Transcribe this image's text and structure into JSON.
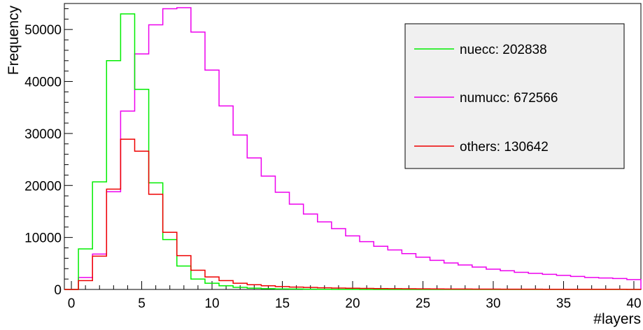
{
  "chart_data": {
    "type": "histogram",
    "xlabel": "#layers",
    "ylabel": "Frequency",
    "xlim": [
      -0.5,
      40.5
    ],
    "ylim": [
      0,
      55000
    ],
    "grid": false,
    "legend_position": "top-right",
    "x_ticks": [
      0,
      5,
      10,
      15,
      20,
      25,
      30,
      35,
      40
    ],
    "y_ticks": [
      0,
      10000,
      20000,
      30000,
      40000,
      50000
    ],
    "bin_edges": [
      -0.5,
      0.5,
      1.5,
      2.5,
      3.5,
      4.5,
      5.5,
      6.5,
      7.5,
      8.5,
      9.5,
      10.5,
      11.5,
      12.5,
      13.5,
      14.5,
      15.5,
      16.5,
      17.5,
      18.5,
      19.5,
      20.5,
      21.5,
      22.5,
      23.5,
      24.5,
      25.5,
      26.5,
      27.5,
      28.5,
      29.5,
      30.5,
      31.5,
      32.5,
      33.5,
      34.5,
      35.5,
      36.5,
      37.5,
      38.5,
      39.5,
      40.5
    ],
    "series": [
      {
        "name": "nuecc: 202838",
        "color": "#00ee00",
        "values": [
          0,
          7800,
          20700,
          44000,
          53000,
          38500,
          20500,
          9600,
          4500,
          2000,
          1200,
          700,
          400,
          250,
          150,
          100,
          80,
          50,
          30,
          20,
          10,
          5,
          5,
          0,
          0,
          0,
          0,
          0,
          0,
          0,
          0,
          0,
          0,
          0,
          0,
          0,
          0,
          0,
          0,
          0,
          0
        ]
      },
      {
        "name": "numucc: 672566",
        "color": "#ee00ee",
        "values": [
          0,
          2300,
          6800,
          18800,
          34300,
          45300,
          50900,
          54000,
          54200,
          49500,
          42200,
          35300,
          29700,
          25300,
          21800,
          18700,
          16400,
          14500,
          13000,
          11700,
          10300,
          9200,
          8300,
          7600,
          6900,
          6200,
          5600,
          5100,
          4700,
          4300,
          3900,
          3600,
          3300,
          3100,
          2900,
          2700,
          2500,
          2300,
          2200,
          2100,
          1900
        ]
      },
      {
        "name": "others: 130642",
        "color": "#ee0000",
        "values": [
          0,
          1700,
          6400,
          19300,
          28900,
          26600,
          18300,
          11000,
          6500,
          3700,
          2400,
          1700,
          1200,
          900,
          700,
          550,
          450,
          380,
          320,
          270,
          230,
          200,
          170,
          150,
          130,
          110,
          100,
          90,
          80,
          70,
          60,
          55,
          50,
          45,
          40,
          35,
          30,
          30,
          25,
          25,
          20
        ]
      }
    ]
  }
}
